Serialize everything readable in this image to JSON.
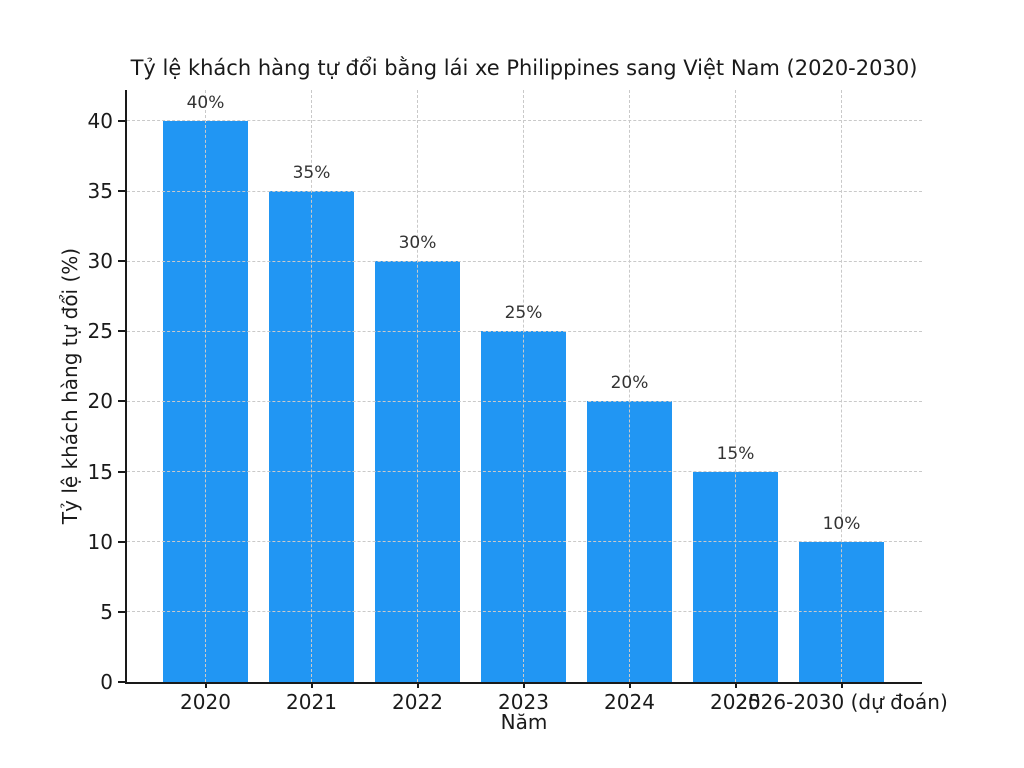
{
  "chart_data": {
    "type": "bar",
    "title": "Tỷ lệ khách hàng tự đổi bằng lái xe Philippines sang Việt Nam (2020-2030)",
    "xlabel": "Năm",
    "ylabel": "Tỷ lệ khách hàng tự đổi (%)",
    "categories": [
      "2020",
      "2021",
      "2022",
      "2023",
      "2024",
      "2025",
      "2026-2030 (dự đoán)"
    ],
    "values": [
      40,
      35,
      30,
      25,
      20,
      15,
      10
    ],
    "bar_labels": [
      "40%",
      "35%",
      "30%",
      "25%",
      "20%",
      "15%",
      "10%"
    ],
    "yticks": [
      0,
      5,
      10,
      15,
      20,
      25,
      30,
      35,
      40
    ],
    "ylim": [
      0,
      42.2
    ],
    "grid": true,
    "grid_style": "dashed",
    "legend": "none",
    "bar_color": "#2196f3",
    "text_color": "#1a1a1a"
  }
}
